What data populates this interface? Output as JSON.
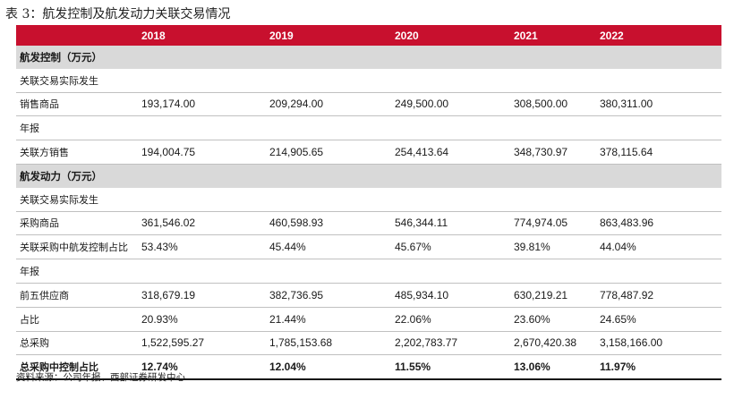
{
  "title": "表 3：航发控制及航发动力关联交易情况",
  "header": {
    "corner": "",
    "years": [
      "2018",
      "2019",
      "2020",
      "2021",
      "2022"
    ]
  },
  "rows": [
    {
      "type": "section",
      "label": "航发控制（万元）",
      "cells": [
        "",
        "",
        "",
        "",
        ""
      ]
    },
    {
      "type": "row",
      "label": "关联交易实际发生",
      "cells": [
        "",
        "",
        "",
        "",
        ""
      ]
    },
    {
      "type": "row",
      "label": "销售商品",
      "cells": [
        "193,174.00",
        "209,294.00",
        "249,500.00",
        "308,500.00",
        "380,311.00"
      ]
    },
    {
      "type": "row",
      "label": "年报",
      "cells": [
        "",
        "",
        "",
        "",
        ""
      ]
    },
    {
      "type": "row",
      "label": "关联方销售",
      "cells": [
        "194,004.75",
        "214,905.65",
        "254,413.64",
        "348,730.97",
        "378,115.64"
      ]
    },
    {
      "type": "section",
      "label": "航发动力（万元）",
      "cells": [
        "",
        "",
        "",
        "",
        ""
      ]
    },
    {
      "type": "row",
      "label": "关联交易实际发生",
      "cells": [
        "",
        "",
        "",
        "",
        ""
      ]
    },
    {
      "type": "row",
      "label": "采购商品",
      "cells": [
        "361,546.02",
        "460,598.93",
        "546,344.11",
        "774,974.05",
        "863,483.96"
      ]
    },
    {
      "type": "row",
      "label": "关联采购中航发控制占比",
      "cells": [
        "53.43%",
        "45.44%",
        "45.67%",
        "39.81%",
        "44.04%"
      ]
    },
    {
      "type": "row",
      "label": "年报",
      "cells": [
        "",
        "",
        "",
        "",
        ""
      ]
    },
    {
      "type": "row",
      "label": "前五供应商",
      "cells": [
        "318,679.19",
        "382,736.95",
        "485,934.10",
        "630,219.21",
        "778,487.92"
      ]
    },
    {
      "type": "row",
      "label": "占比",
      "cells": [
        "20.93%",
        "21.44%",
        "22.06%",
        "23.60%",
        "24.65%"
      ]
    },
    {
      "type": "row",
      "label": "总采购",
      "cells": [
        "1,522,595.27",
        "1,785,153.68",
        "2,202,783.77",
        "2,670,420.38",
        "3,158,166.00"
      ]
    },
    {
      "type": "last",
      "label": "总采购中控制占比",
      "cells": [
        "12.74%",
        "12.04%",
        "11.55%",
        "13.06%",
        "11.97%"
      ]
    }
  ],
  "source": "资料来源：公司年报、西部证券研发中心",
  "colors": {
    "header_bg": "#c8102e",
    "section_bg": "#d9d9d9"
  }
}
